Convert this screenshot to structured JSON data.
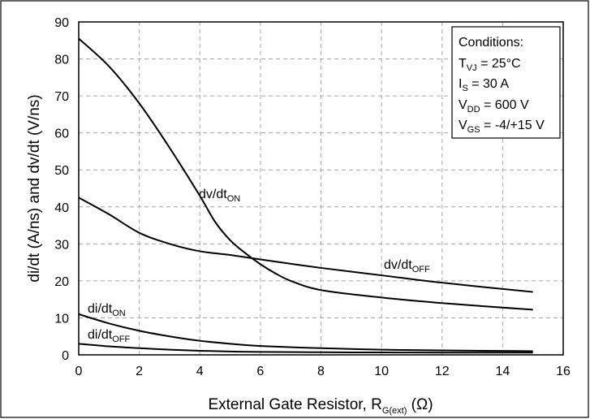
{
  "chart_data": {
    "type": "line",
    "xlabel": {
      "main": "External Gate Resistor, R",
      "sub": "G(ext)",
      "tail": " (Ω)"
    },
    "ylabel": "di/dt (A/ns) and dv/dt (V/ns)",
    "xlim": [
      0,
      16
    ],
    "ylim": [
      0,
      90
    ],
    "x_ticks": [
      "0",
      "2",
      "4",
      "6",
      "8",
      "10",
      "12",
      "14",
      "16"
    ],
    "y_ticks": [
      "0",
      "10",
      "20",
      "30",
      "40",
      "50",
      "60",
      "70",
      "80",
      "90"
    ],
    "grid": true,
    "conditions": {
      "title": "Conditions:",
      "lines": [
        {
          "main": "T",
          "sub": "VJ",
          "tail": " = 25°C"
        },
        {
          "main": "I",
          "sub": "S",
          "tail": " = 30 A"
        },
        {
          "main": "V",
          "sub": "DD",
          "tail": " = 600 V"
        },
        {
          "main": "V",
          "sub": "GS",
          "tail": " = -4/+15 V"
        }
      ]
    },
    "series": [
      {
        "name": {
          "main": "dv/dt",
          "sub": "ON"
        },
        "x": [
          0,
          1,
          2,
          3,
          4,
          4.5,
          5,
          5.5,
          6,
          6.5,
          7,
          8,
          10,
          12,
          15
        ],
        "y": [
          85.5,
          78,
          68,
          56,
          43,
          36,
          31,
          27.5,
          24.5,
          22,
          20,
          17.5,
          15.5,
          14,
          12.2
        ]
      },
      {
        "name": {
          "main": "dv/dt",
          "sub": "OFF"
        },
        "x": [
          0,
          1,
          2,
          3,
          4,
          5,
          6,
          8,
          10,
          12,
          15
        ],
        "y": [
          42.5,
          38,
          33,
          30,
          28,
          27,
          25.8,
          23.5,
          21.5,
          19.5,
          17
        ]
      },
      {
        "name": {
          "main": "di/dt",
          "sub": "ON"
        },
        "x": [
          0,
          1,
          2,
          3,
          4,
          5,
          6,
          8,
          10,
          12,
          15
        ],
        "y": [
          11,
          8.5,
          6.5,
          5,
          3.8,
          3,
          2.4,
          1.8,
          1.4,
          1.2,
          1
        ]
      },
      {
        "name": {
          "main": "di/dt",
          "sub": "OFF"
        },
        "x": [
          0,
          1,
          2,
          3,
          4,
          5,
          6,
          8,
          10,
          12,
          15
        ],
        "y": [
          3,
          2.3,
          1.8,
          1.4,
          1.1,
          0.9,
          0.8,
          0.7,
          0.65,
          0.6,
          0.6
        ]
      }
    ]
  }
}
